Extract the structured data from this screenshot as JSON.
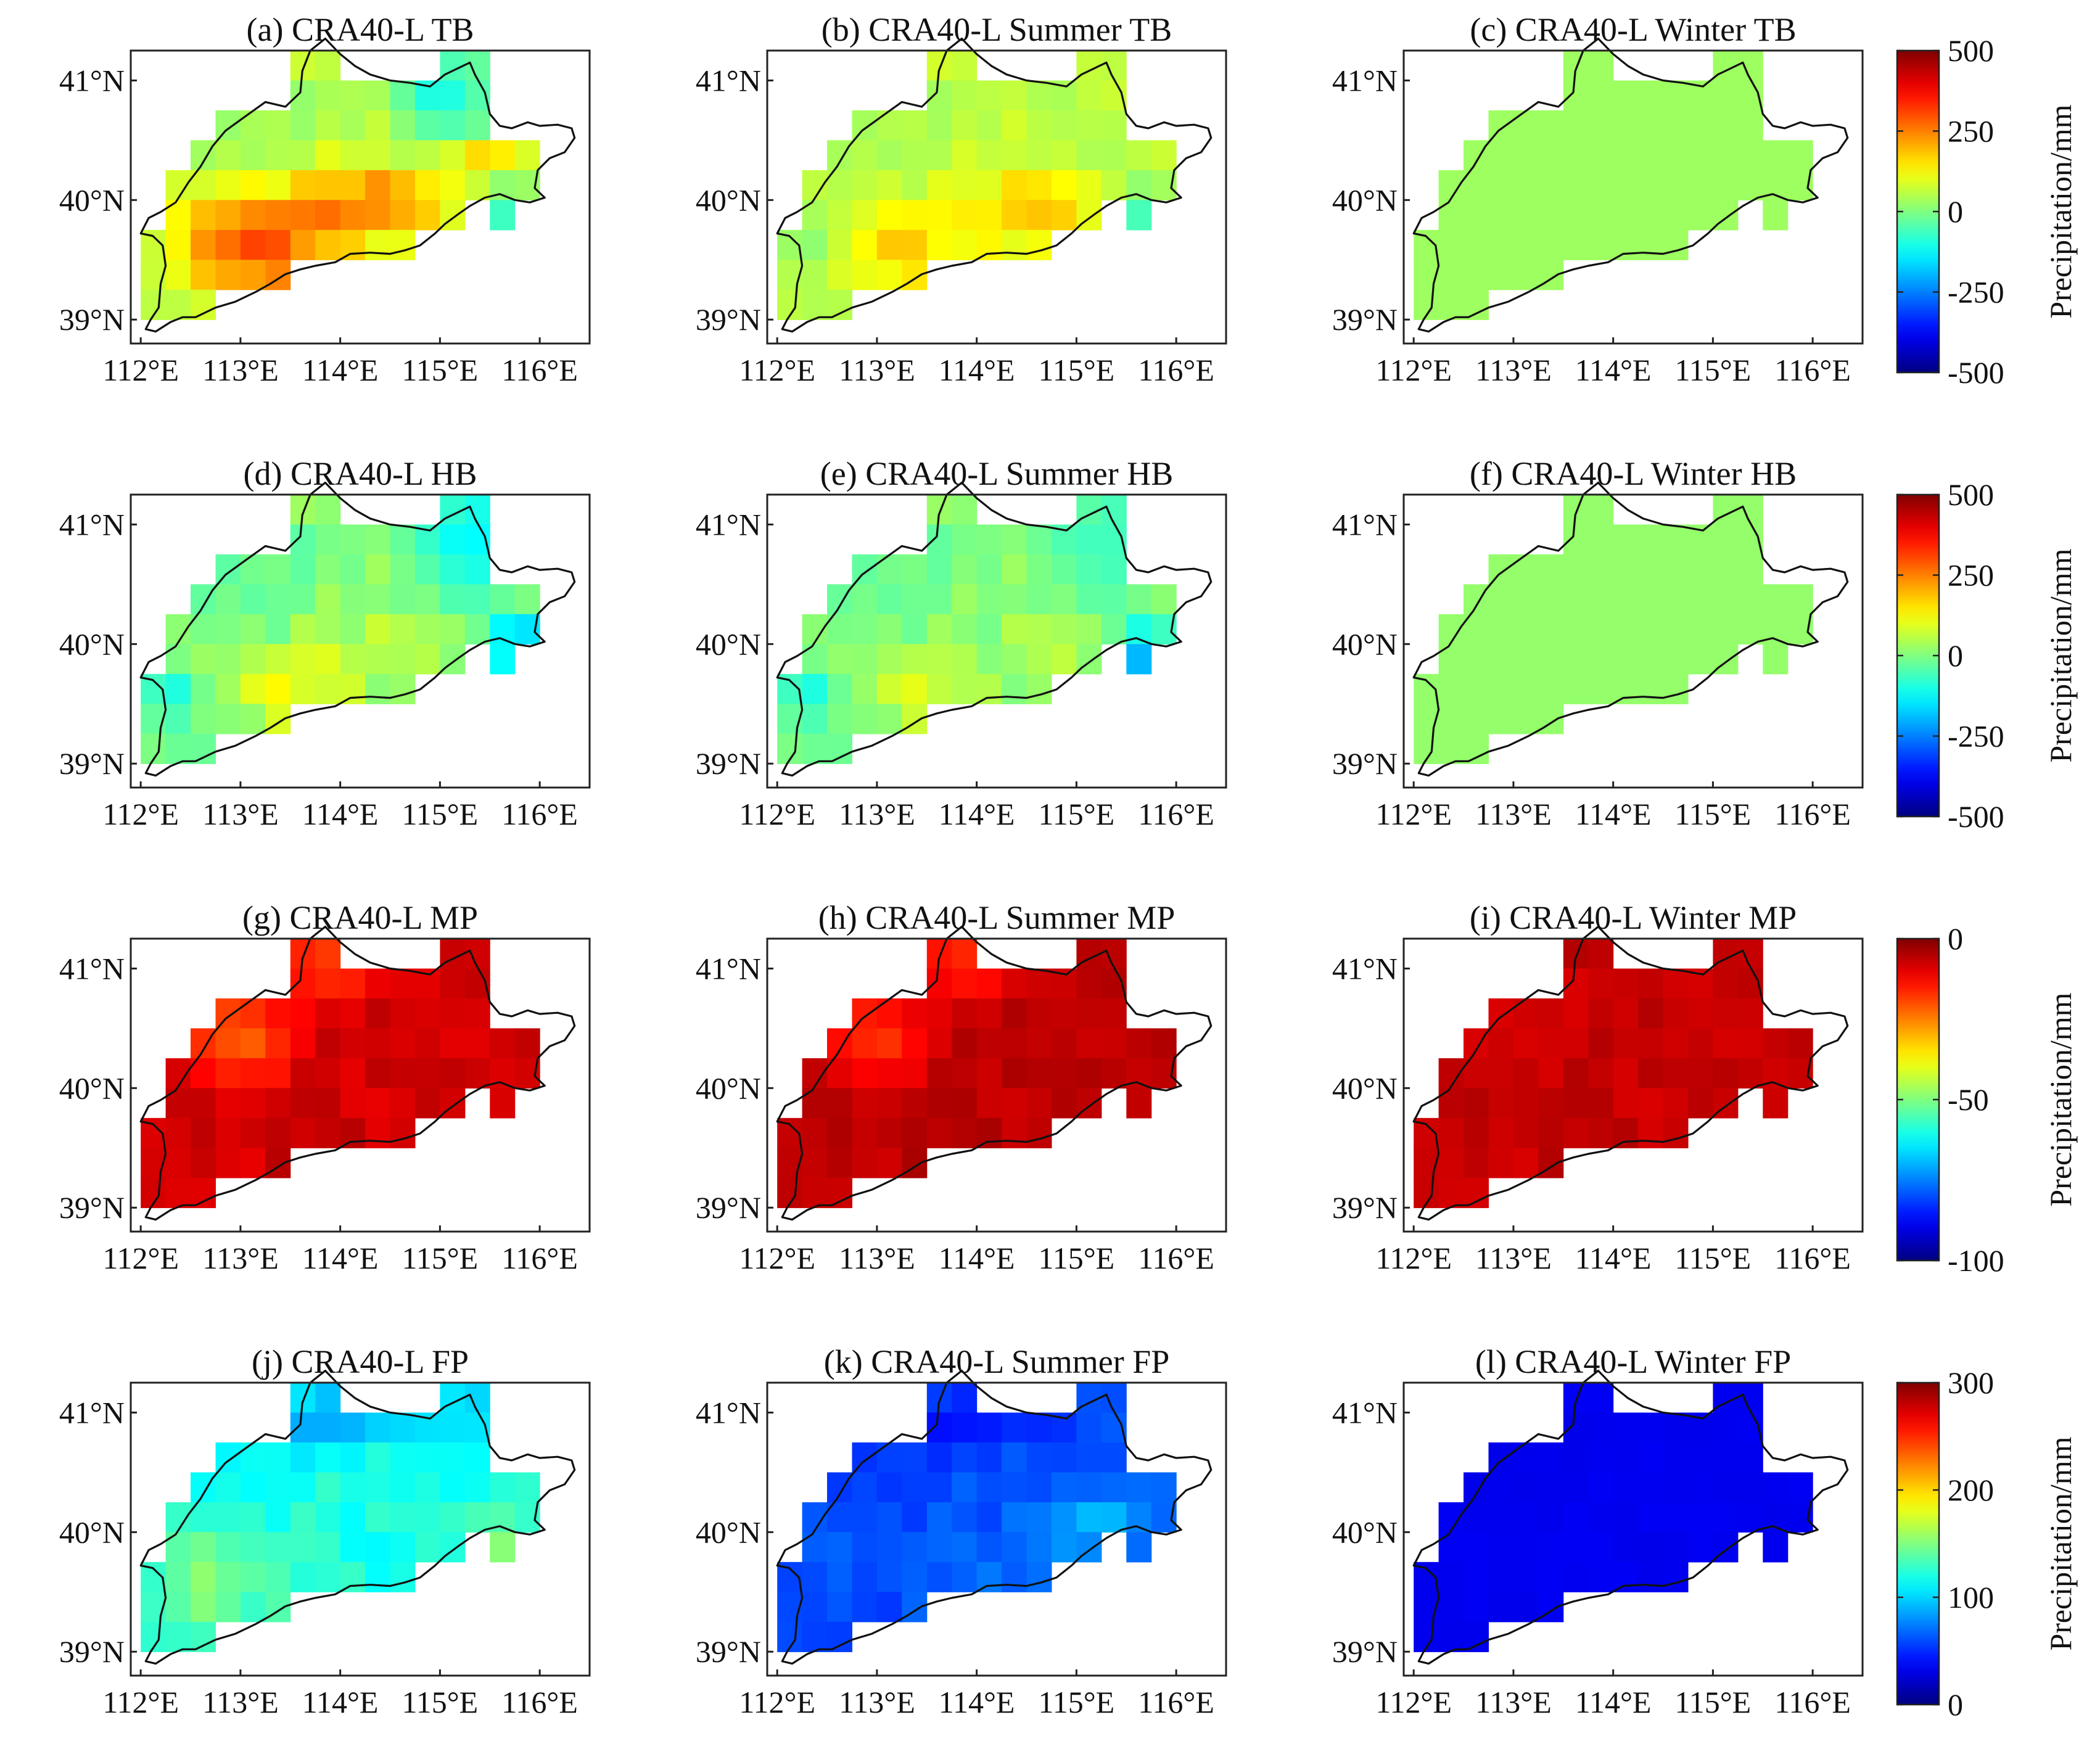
{
  "figure": {
    "lon_ticks": [
      "112°E",
      "113°E",
      "114°E",
      "115°E",
      "116°E"
    ],
    "lat_ticks": [
      "41°N",
      "40°N",
      "39°N"
    ]
  },
  "panels": [
    {
      "id": "a",
      "title": "(a) CRA40-L TB",
      "row": 0,
      "col": 0,
      "pattern": "tb_all"
    },
    {
      "id": "b",
      "title": "(b) CRA40-L Summer TB",
      "row": 0,
      "col": 1,
      "pattern": "tb_summer"
    },
    {
      "id": "c",
      "title": "(c) CRA40-L Winter TB",
      "row": 0,
      "col": 2,
      "pattern": "flat20"
    },
    {
      "id": "d",
      "title": "(d) CRA40-L HB",
      "row": 1,
      "col": 0,
      "pattern": "hb_all"
    },
    {
      "id": "e",
      "title": "(e) CRA40-L Summer HB",
      "row": 1,
      "col": 1,
      "pattern": "hb_summer"
    },
    {
      "id": "f",
      "title": "(f) CRA40-L Winter HB",
      "row": 1,
      "col": 2,
      "pattern": "flat40"
    },
    {
      "id": "g",
      "title": "(g) CRA40-L MP",
      "row": 2,
      "col": 0,
      "pattern": "mp_all"
    },
    {
      "id": "h",
      "title": "(h) CRA40-L Summer MP",
      "row": 2,
      "col": 1,
      "pattern": "mp_summer"
    },
    {
      "id": "i",
      "title": "(i) CRA40-L Winter MP",
      "row": 2,
      "col": 2,
      "pattern": "mp_winter"
    },
    {
      "id": "j",
      "title": "(j) CRA40-L FP",
      "row": 3,
      "col": 0,
      "pattern": "fp_all"
    },
    {
      "id": "k",
      "title": "(k) CRA40-L Summer FP",
      "row": 3,
      "col": 1,
      "pattern": "fp_summer"
    },
    {
      "id": "l",
      "title": "(l) CRA40-L Winter FP",
      "row": 3,
      "col": 2,
      "pattern": "fp_winter"
    }
  ],
  "colorbars": [
    {
      "row": 0,
      "label": "Precipitation/mm",
      "ticks": [
        "500",
        "250",
        "0",
        "-250",
        "-500"
      ],
      "min": -500,
      "max": 500
    },
    {
      "row": 1,
      "label": "Precipitation/mm",
      "ticks": [
        "500",
        "250",
        "0",
        "-250",
        "-500"
      ],
      "min": -500,
      "max": 500
    },
    {
      "row": 2,
      "label": "Precipitation/mm",
      "ticks": [
        "0",
        "-50",
        "-100"
      ],
      "min": -100,
      "max": 0
    },
    {
      "row": 3,
      "label": "Precipitation/mm",
      "ticks": [
        "300",
        "200",
        "100",
        "0"
      ],
      "min": 0,
      "max": 300
    }
  ]
}
